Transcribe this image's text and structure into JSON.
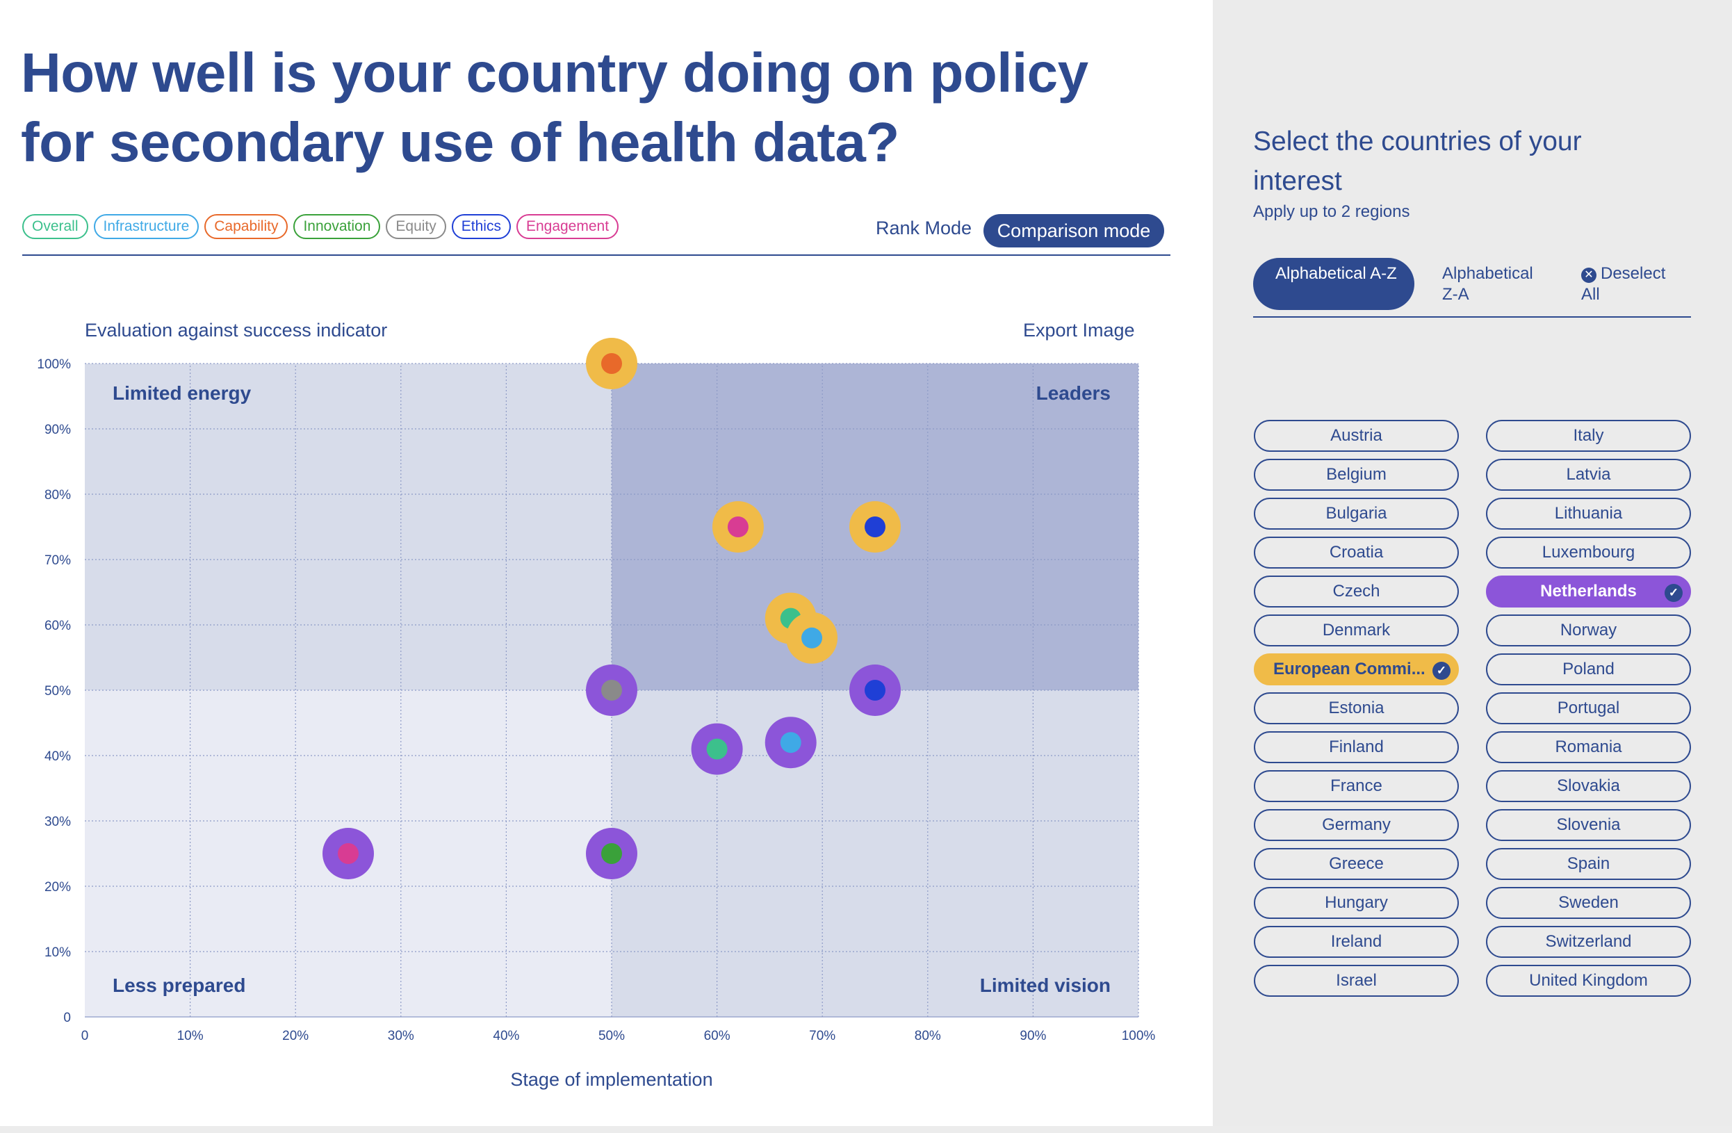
{
  "title": "How well is your country doing on policy for secondary use of health data?",
  "filters": [
    {
      "label": "Overall",
      "color": "#3cc08c"
    },
    {
      "label": "Infrastructure",
      "color": "#3fa9e6"
    },
    {
      "label": "Capability",
      "color": "#e8692a"
    },
    {
      "label": "Innovation",
      "color": "#3aa13a"
    },
    {
      "label": "Equity",
      "color": "#8a8a8a"
    },
    {
      "label": "Ethics",
      "color": "#1f3fd6"
    },
    {
      "label": "Engagement",
      "color": "#d83c93"
    }
  ],
  "modes": {
    "rank": "Rank Mode",
    "comparison": "Comparison mode"
  },
  "chart_header": {
    "y_title": "Evaluation against success indicator",
    "export": "Export Image"
  },
  "chart_data": {
    "type": "scatter",
    "xlabel": "Stage of implementation",
    "ylabel": "Evaluation against success indicator",
    "xlim": [
      0,
      100
    ],
    "ylim": [
      0,
      100
    ],
    "x_ticks": [
      "0",
      "10%",
      "20%",
      "30%",
      "40%",
      "50%",
      "60%",
      "70%",
      "80%",
      "90%",
      "100%"
    ],
    "y_ticks": [
      "0",
      "10%",
      "20%",
      "30%",
      "40%",
      "50%",
      "60%",
      "70%",
      "80%",
      "90%",
      "100%"
    ],
    "grid": true,
    "quadrants": {
      "top_left": "Limited energy",
      "top_right": "Leaders",
      "bottom_left": "Less prepared",
      "bottom_right": "Limited vision"
    },
    "series": [
      {
        "country": "European Commission",
        "ring_color": "#f0bb48",
        "points": [
          {
            "dimension": "Capability",
            "x": 50,
            "y": 100,
            "color": "#e8692a"
          },
          {
            "dimension": "Engagement",
            "x": 62,
            "y": 75,
            "color": "#d83c93"
          },
          {
            "dimension": "Ethics",
            "x": 75,
            "y": 75,
            "color": "#1f3fd6"
          },
          {
            "dimension": "Overall",
            "x": 67,
            "y": 61,
            "color": "#3cc08c"
          },
          {
            "dimension": "Infrastructure",
            "x": 69,
            "y": 58,
            "color": "#3fa9e6"
          }
        ]
      },
      {
        "country": "Netherlands",
        "ring_color": "#8c55d9",
        "points": [
          {
            "dimension": "Equity",
            "x": 50,
            "y": 50,
            "color": "#8a8a8a"
          },
          {
            "dimension": "Ethics",
            "x": 75,
            "y": 50,
            "color": "#1f3fd6"
          },
          {
            "dimension": "Overall",
            "x": 60,
            "y": 41,
            "color": "#3cc08c"
          },
          {
            "dimension": "Infrastructure",
            "x": 67,
            "y": 42,
            "color": "#3fa9e6"
          },
          {
            "dimension": "Engagement",
            "x": 25,
            "y": 25,
            "color": "#d83c93"
          },
          {
            "dimension": "Innovation",
            "x": 50,
            "y": 25,
            "color": "#3aa13a"
          }
        ]
      }
    ]
  },
  "sidebar": {
    "title": "Select the countries of your interest",
    "subtitle": "Apply up to 2 regions",
    "sort_az": "Alphabetical A-Z",
    "sort_za": "Alphabetical Z-A",
    "deselect": "Deselect All",
    "countries_left": [
      "Austria",
      "Belgium",
      "Bulgaria",
      "Croatia",
      "Czech",
      "Denmark",
      "European Commi...",
      "Estonia",
      "Finland",
      "France",
      "Germany",
      "Greece",
      "Hungary",
      "Ireland",
      "Israel"
    ],
    "countries_right": [
      "Italy",
      "Latvia",
      "Lithuania",
      "Luxembourg",
      "Netherlands",
      "Norway",
      "Poland",
      "Portugal",
      "Romania",
      "Slovakia",
      "Slovenia",
      "Spain",
      "Sweden",
      "Switzerland",
      "United Kingdom"
    ],
    "selected": [
      "European Commi...",
      "Netherlands"
    ]
  }
}
